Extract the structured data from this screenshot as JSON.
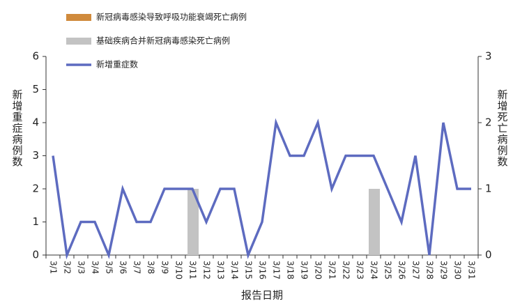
{
  "chart_data": {
    "type": "bar-line",
    "x_label": "报告日期",
    "y_label": "新增重症病例数",
    "y2_label": "新增死亡病例数",
    "categories": [
      "3/1",
      "3/2",
      "3/3",
      "3/4",
      "3/5",
      "3/6",
      "3/7",
      "3/8",
      "3/9",
      "3/10",
      "3/11",
      "3/12",
      "3/13",
      "3/14",
      "3/15",
      "3/16",
      "3/17",
      "3/18",
      "3/19",
      "3/20",
      "3/21",
      "3/22",
      "3/23",
      "3/24",
      "3/25",
      "3/26",
      "3/27",
      "3/28",
      "3/29",
      "3/30",
      "3/31"
    ],
    "series": [
      {
        "name": "新冠病毒感染导致呼吸功能衰竭死亡病例",
        "type": "bar",
        "axis": "y2",
        "color": "#d08a3c",
        "values": [
          0,
          0,
          0,
          0,
          0,
          0,
          0,
          0,
          0,
          0,
          0,
          0,
          0,
          0,
          0,
          0,
          0,
          0,
          0,
          0,
          0,
          0,
          0,
          0,
          0,
          0,
          0,
          0,
          0,
          0,
          0
        ]
      },
      {
        "name": "基础疾病合并新冠病毒感染死亡病例",
        "type": "bar",
        "axis": "y2",
        "color": "#c3c3c3",
        "values": [
          0,
          0,
          0,
          0,
          0,
          0,
          0,
          0,
          0,
          0,
          1,
          0,
          0,
          0,
          0,
          0,
          0,
          0,
          0,
          0,
          0,
          0,
          0,
          1,
          0,
          0,
          0,
          0,
          0,
          0,
          0
        ]
      },
      {
        "name": "新增重症数",
        "type": "line",
        "color": "#5d6bc0",
        "values": [
          3,
          0,
          1,
          1,
          0,
          2,
          1,
          1,
          2,
          2,
          2,
          1,
          2,
          2,
          0,
          1,
          4,
          3,
          3,
          4,
          2,
          3,
          3,
          3,
          2,
          1,
          3,
          0,
          4,
          2,
          2
        ]
      }
    ],
    "ylim": [
      0,
      6
    ],
    "yticks": [
      0,
      1,
      2,
      3,
      4,
      5,
      6
    ],
    "y2lim": [
      0,
      3
    ],
    "y2ticks": [
      0,
      1,
      2,
      3
    ]
  }
}
